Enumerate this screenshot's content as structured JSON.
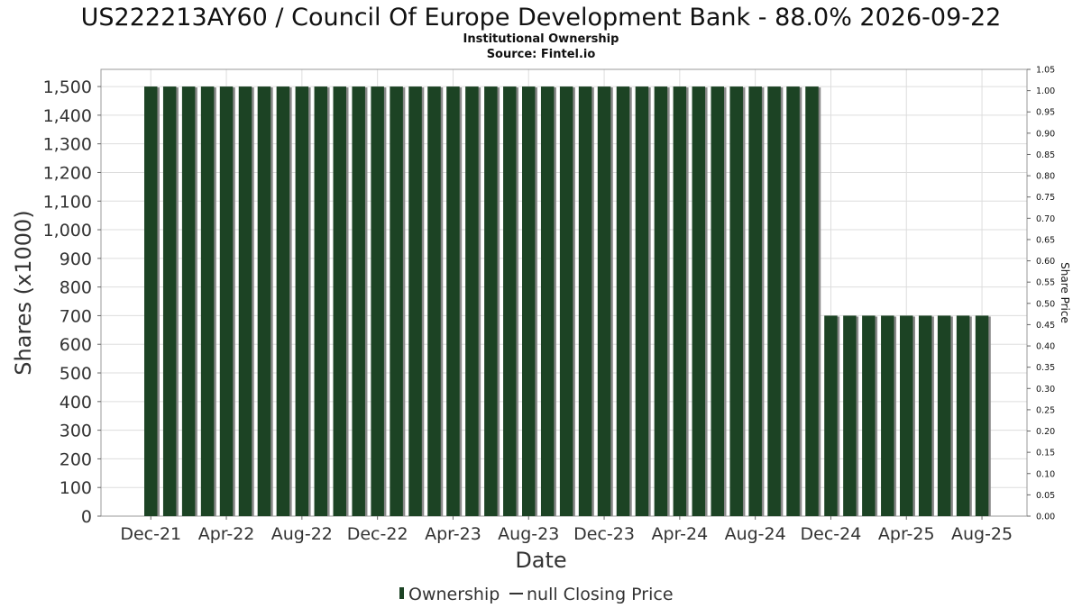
{
  "header": {
    "title": "US222213AY60 / Council Of Europe Development Bank - 88.0% 2026-09-22",
    "subtitle": "Institutional Ownership",
    "source": "Source: Fintel.io"
  },
  "legend": {
    "items": [
      {
        "label": "Ownership",
        "color": "#1c4324",
        "marker": "bar"
      },
      {
        "label": "null Closing Price",
        "color": "#333333",
        "marker": "line"
      }
    ]
  },
  "chart_data": {
    "type": "bar",
    "xlabel": "Date",
    "ylabel": "Shares (x1000)",
    "y2label": "Share Price",
    "ylim": [
      0,
      1560
    ],
    "y2lim": [
      0,
      1.05
    ],
    "grid": true,
    "legend_position": "bottom",
    "yticks": [
      "0",
      "100",
      "200",
      "300",
      "400",
      "500",
      "600",
      "700",
      "800",
      "900",
      "1,000",
      "1,100",
      "1,200",
      "1,300",
      "1,400",
      "1,500"
    ],
    "y2ticks": [
      "0.00",
      "0.05",
      "0.10",
      "0.15",
      "0.20",
      "0.25",
      "0.30",
      "0.35",
      "0.40",
      "0.45",
      "0.50",
      "0.55",
      "0.60",
      "0.65",
      "0.70",
      "0.75",
      "0.80",
      "0.85",
      "0.90",
      "0.95",
      "1.00",
      "1.05"
    ],
    "xticks": [
      "Dec-21",
      "Apr-22",
      "Aug-22",
      "Dec-22",
      "Apr-23",
      "Aug-23",
      "Dec-23",
      "Apr-24",
      "Aug-24",
      "Dec-24",
      "Apr-25",
      "Aug-25"
    ],
    "series": [
      {
        "name": "Ownership",
        "color": "#1c4324",
        "values": [
          1500,
          1500,
          1500,
          1500,
          1500,
          1500,
          1500,
          1500,
          1500,
          1500,
          1500,
          1500,
          1500,
          1500,
          1500,
          1500,
          1500,
          1500,
          1500,
          1500,
          1500,
          1500,
          1500,
          1500,
          1500,
          1500,
          1500,
          1500,
          1500,
          1500,
          1500,
          1500,
          1500,
          1500,
          1500,
          1500,
          700,
          700,
          700,
          700,
          700,
          700,
          700,
          700,
          700
        ]
      }
    ]
  }
}
